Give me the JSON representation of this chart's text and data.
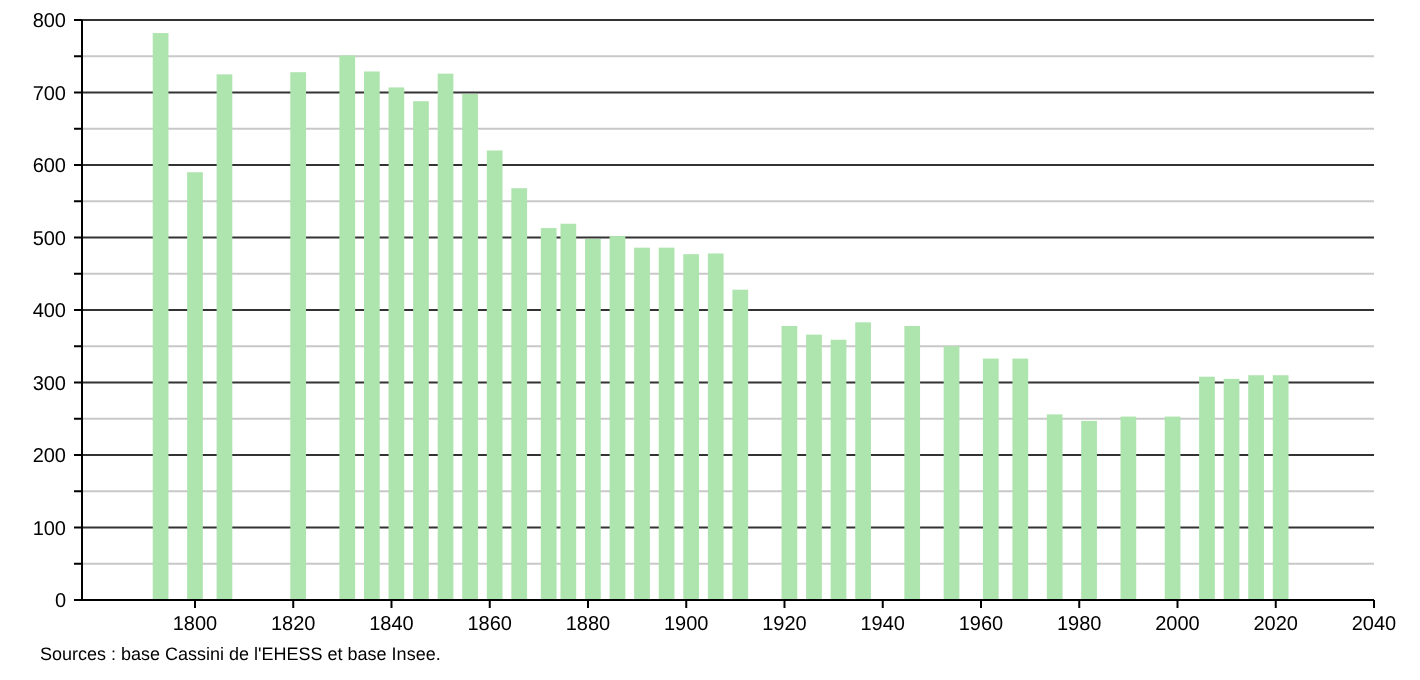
{
  "chart_data": {
    "type": "bar",
    "x": [
      1793,
      1800,
      1806,
      1821,
      1831,
      1836,
      1841,
      1846,
      1851,
      1856,
      1861,
      1866,
      1872,
      1876,
      1881,
      1886,
      1891,
      1896,
      1901,
      1906,
      1911,
      1921,
      1926,
      1931,
      1936,
      1946,
      1954,
      1962,
      1968,
      1975,
      1982,
      1990,
      1999,
      2006,
      2011,
      2016,
      2021
    ],
    "values": [
      782,
      590,
      725,
      728,
      751,
      729,
      707,
      688,
      726,
      698,
      620,
      568,
      513,
      519,
      498,
      502,
      486,
      486,
      477,
      478,
      428,
      378,
      366,
      359,
      383,
      378,
      350,
      333,
      333,
      256,
      247,
      253,
      253,
      308,
      305,
      310,
      310
    ],
    "color": "#aee4ae",
    "xlim": [
      1777,
      2040
    ],
    "xticks": [
      1800,
      1820,
      1840,
      1860,
      1880,
      1900,
      1920,
      1940,
      1960,
      1980,
      2000,
      2020,
      2040
    ],
    "ylim": [
      0,
      800
    ],
    "yticks": [
      0,
      {
        "value": 50,
        "label": null
      },
      100,
      {
        "value": 150,
        "label": null
      },
      200,
      {
        "value": 250,
        "label": null
      },
      300,
      {
        "value": 350,
        "label": null
      },
      400,
      {
        "value": 450,
        "label": null
      },
      500,
      {
        "value": 550,
        "label": null
      },
      600,
      {
        "value": 650,
        "label": null
      },
      700,
      {
        "value": 750,
        "label": null
      },
      800
    ],
    "grid": "y",
    "annotations": [
      "Sources : base Cassini de l'EHESS et base Insee."
    ]
  }
}
